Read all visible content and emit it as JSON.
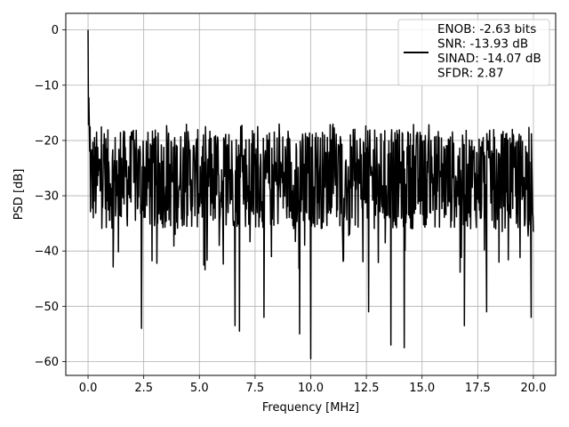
{
  "chart_data": {
    "type": "line",
    "title": "",
    "xlabel": "Frequency [MHz]",
    "ylabel": "PSD [dB]",
    "xlim": [
      -1.0,
      21.0
    ],
    "ylim": [
      -62.5,
      3.0
    ],
    "xticks": [
      0.0,
      2.5,
      5.0,
      7.5,
      10.0,
      12.5,
      15.0,
      17.5,
      20.0
    ],
    "xtick_labels": [
      "0.0",
      "2.5",
      "5.0",
      "7.5",
      "10.0",
      "12.5",
      "15.0",
      "17.5",
      "20.0"
    ],
    "yticks": [
      0,
      -10,
      -20,
      -30,
      -40,
      -50,
      -60
    ],
    "ytick_labels": [
      "0",
      "−10",
      "−20",
      "−30",
      "−40",
      "−50",
      "−60"
    ],
    "grid": true,
    "legend_position": "top-right",
    "legend_entries": [
      "ENOB: -2.63 bits",
      "SNR: -13.93 dB",
      "SINAD: -14.07 dB",
      "SFDR: 2.87"
    ],
    "series": [
      {
        "color": "#000000",
        "x_start": 0.0,
        "x_end": 20.0,
        "approx_mean_db": -27,
        "approx_spread_db": 9,
        "peak": {
          "x": 0.0,
          "y": 0.0
        },
        "notable_dips": [
          {
            "x": 2.4,
            "y": -54
          },
          {
            "x": 6.6,
            "y": -53.5
          },
          {
            "x": 6.8,
            "y": -54.5
          },
          {
            "x": 7.9,
            "y": -52
          },
          {
            "x": 9.5,
            "y": -55
          },
          {
            "x": 10.0,
            "y": -59.5
          },
          {
            "x": 12.6,
            "y": -51
          },
          {
            "x": 13.6,
            "y": -57
          },
          {
            "x": 14.2,
            "y": -57.5
          },
          {
            "x": 16.9,
            "y": -53.5
          },
          {
            "x": 17.9,
            "y": -51
          },
          {
            "x": 19.9,
            "y": -52
          }
        ]
      }
    ]
  }
}
